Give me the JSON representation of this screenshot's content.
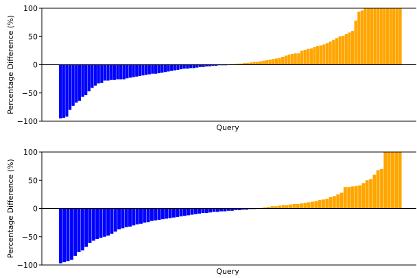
{
  "chart_data": [
    {
      "type": "bar",
      "title": "",
      "xlabel": "Query",
      "ylabel": "Percentage Difference (%)",
      "ylim": [
        -100,
        100
      ],
      "yticks": [
        -100,
        -50,
        0,
        50,
        100
      ],
      "colors": {
        "negative": "#0000ff",
        "positive": "#ffa500"
      },
      "values": [
        -95,
        -94,
        -92,
        -80,
        -73,
        -67,
        -64,
        -57,
        -54,
        -47,
        -41,
        -37,
        -33,
        -32,
        -28,
        -28,
        -27,
        -27,
        -26,
        -26,
        -26,
        -24,
        -23,
        -22,
        -21,
        -20,
        -19,
        -18,
        -17,
        -16,
        -16,
        -15,
        -14,
        -13,
        -12,
        -11,
        -10,
        -9,
        -8,
        -7,
        -7,
        -6,
        -6,
        -5,
        -4,
        -4,
        -3,
        -3,
        -2,
        -2,
        -1,
        -1,
        -1,
        0,
        1,
        1,
        2,
        2,
        3,
        3,
        4,
        5,
        5,
        6,
        7,
        8,
        9,
        10,
        11,
        12,
        14,
        16,
        18,
        19,
        20,
        20,
        25,
        26,
        28,
        29,
        31,
        33,
        34,
        36,
        38,
        41,
        44,
        47,
        50,
        51,
        54,
        57,
        60,
        78,
        94,
        96,
        100,
        100,
        100,
        100,
        100,
        100,
        100,
        100,
        100,
        100,
        100,
        100
      ]
    },
    {
      "type": "bar",
      "title": "",
      "xlabel": "Query",
      "ylabel": "Percentage Difference (%)",
      "ylim": [
        -100,
        100
      ],
      "yticks": [
        -100,
        -50,
        0,
        50,
        100
      ],
      "colors": {
        "negative": "#0000ff",
        "positive": "#ffa500"
      },
      "values": [
        -97,
        -95,
        -93,
        -91,
        -84,
        -77,
        -74,
        -68,
        -61,
        -57,
        -54,
        -52,
        -50,
        -48,
        -45,
        -41,
        -37,
        -35,
        -33,
        -32,
        -30,
        -28,
        -27,
        -25,
        -24,
        -22,
        -21,
        -20,
        -19,
        -18,
        -17,
        -16,
        -15,
        -14,
        -13,
        -12,
        -11,
        -10,
        -9,
        -8,
        -8,
        -7,
        -6,
        -6,
        -5,
        -5,
        -4,
        -4,
        -3,
        -3,
        -2,
        -2,
        -1,
        -1,
        0,
        1,
        2,
        3,
        4,
        4,
        5,
        6,
        6,
        7,
        8,
        8,
        9,
        10,
        11,
        12,
        13,
        15,
        16,
        17,
        20,
        22,
        25,
        28,
        38,
        38,
        39,
        40,
        41,
        45,
        50,
        52,
        60,
        68,
        70,
        100,
        100,
        100,
        100,
        100
      ]
    }
  ]
}
